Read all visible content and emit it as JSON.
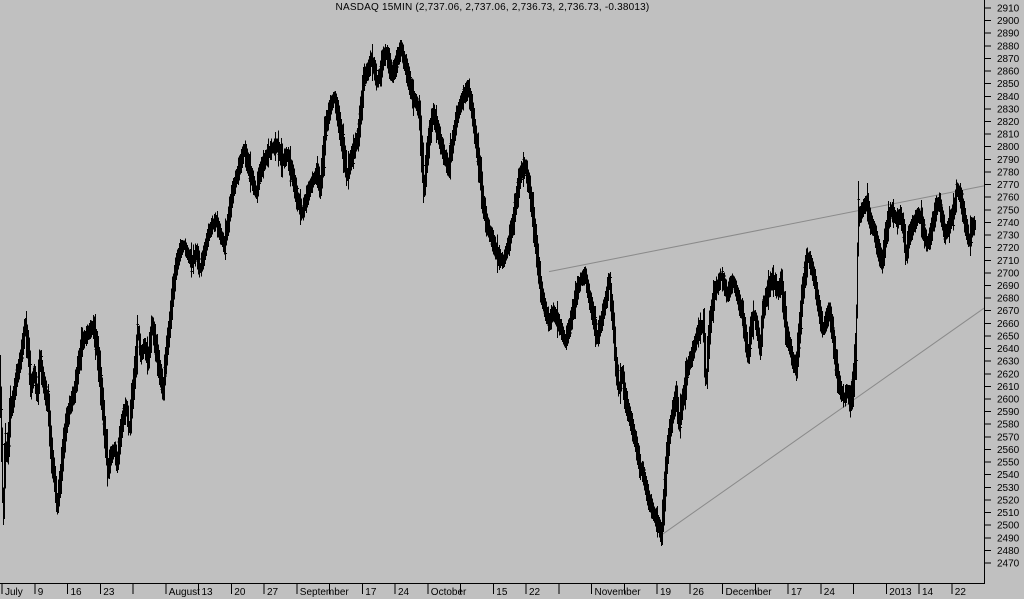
{
  "title": "NASDAQ 15MIN (2,737.06, 2,737.06, 2,736.73, 2,736.73, -0.38013)",
  "quote": {
    "symbol": "NASDAQ 15MIN",
    "open": "2,737.06",
    "high": "2,737.06",
    "low": "2,736.73",
    "close": "2,736.73",
    "change": "-0.38013"
  },
  "colors": {
    "background": "#c0c0c0",
    "bar": "#000000",
    "trendline": "#8a8a8a",
    "axis": "#000000",
    "text": "#000000"
  },
  "chart_data": {
    "type": "line",
    "style": "intraday-ohlc-bars",
    "title": "NASDAQ 15MIN (2,737.06, 2,737.06, 2,736.73, 2,736.73, -0.38013)",
    "grid": false,
    "legend": false,
    "y_axis": {
      "min": 2470,
      "max": 2910,
      "step": 10,
      "side": "right",
      "labels": [
        "2910",
        "2900",
        "2890",
        "2880",
        "2870",
        "2860",
        "2850",
        "2840",
        "2830",
        "2820",
        "2810",
        "2800",
        "2790",
        "2780",
        "2770",
        "2760",
        "2750",
        "2740",
        "2730",
        "2720",
        "2710",
        "2700",
        "2690",
        "2680",
        "2670",
        "2660",
        "2650",
        "2640",
        "2630",
        "2620",
        "2610",
        "2600",
        "2590",
        "2580",
        "2570",
        "2560",
        "2550",
        "2540",
        "2530",
        "2520",
        "2510",
        "2500",
        "2490",
        "2480",
        "2470"
      ]
    },
    "x_axis": {
      "tick_count": 30,
      "labels": [
        {
          "tick": 0,
          "text": "July"
        },
        {
          "tick": 1,
          "text": "9"
        },
        {
          "tick": 2,
          "text": "16"
        },
        {
          "tick": 3,
          "text": "23"
        },
        {
          "tick": 5,
          "text": "August"
        },
        {
          "tick": 6,
          "text": "13"
        },
        {
          "tick": 7,
          "text": "20"
        },
        {
          "tick": 8,
          "text": "27"
        },
        {
          "tick": 9,
          "text": "September"
        },
        {
          "tick": 11,
          "text": "17"
        },
        {
          "tick": 12,
          "text": "24"
        },
        {
          "tick": 13,
          "text": "October"
        },
        {
          "tick": 15,
          "text": "15"
        },
        {
          "tick": 16,
          "text": "22"
        },
        {
          "tick": 18,
          "text": "November"
        },
        {
          "tick": 20,
          "text": "19"
        },
        {
          "tick": 21,
          "text": "26"
        },
        {
          "tick": 22,
          "text": "December"
        },
        {
          "tick": 24,
          "text": "17"
        },
        {
          "tick": 25,
          "text": "24"
        },
        {
          "tick": 27,
          "text": "2013"
        },
        {
          "tick": 28,
          "text": "14"
        },
        {
          "tick": 29,
          "text": "22"
        }
      ]
    },
    "trendlines": [
      {
        "name": "upper-trendline",
        "from": [
          549,
          2701
        ],
        "to": [
          984,
          2769
        ]
      },
      {
        "name": "lower-trendline",
        "from": [
          661,
          2492
        ],
        "to": [
          984,
          2672
        ]
      }
    ],
    "price_path": [
      [
        0,
        2610
      ],
      [
        1,
        2580
      ],
      [
        3,
        2515
      ],
      [
        5,
        2555
      ],
      [
        8,
        2565
      ],
      [
        10,
        2590
      ],
      [
        13,
        2600
      ],
      [
        16,
        2615
      ],
      [
        20,
        2630
      ],
      [
        25,
        2657
      ],
      [
        28,
        2640
      ],
      [
        31,
        2610
      ],
      [
        34,
        2620
      ],
      [
        37,
        2605
      ],
      [
        40,
        2630
      ],
      [
        44,
        2610
      ],
      [
        48,
        2595
      ],
      [
        51,
        2560
      ],
      [
        54,
        2540
      ],
      [
        57,
        2517
      ],
      [
        60,
        2535
      ],
      [
        63,
        2560
      ],
      [
        66,
        2580
      ],
      [
        70,
        2595
      ],
      [
        74,
        2605
      ],
      [
        78,
        2625
      ],
      [
        82,
        2645
      ],
      [
        86,
        2650
      ],
      [
        90,
        2655
      ],
      [
        93,
        2657
      ],
      [
        96,
        2645
      ],
      [
        99,
        2625
      ],
      [
        102,
        2600
      ],
      [
        105,
        2570
      ],
      [
        108,
        2545
      ],
      [
        111,
        2555
      ],
      [
        114,
        2560
      ],
      [
        117,
        2550
      ],
      [
        120,
        2570
      ],
      [
        123,
        2585
      ],
      [
        126,
        2593
      ],
      [
        129,
        2578
      ],
      [
        132,
        2600
      ],
      [
        135,
        2625
      ],
      [
        138,
        2652
      ],
      [
        141,
        2635
      ],
      [
        144,
        2642
      ],
      [
        148,
        2632
      ],
      [
        152,
        2658
      ],
      [
        156,
        2640
      ],
      [
        160,
        2620
      ],
      [
        163,
        2608
      ],
      [
        166,
        2635
      ],
      [
        169,
        2655
      ],
      [
        172,
        2680
      ],
      [
        176,
        2705
      ],
      [
        180,
        2718
      ],
      [
        184,
        2722
      ],
      [
        188,
        2714
      ],
      [
        192,
        2709
      ],
      [
        196,
        2716
      ],
      [
        200,
        2704
      ],
      [
        204,
        2715
      ],
      [
        208,
        2730
      ],
      [
        212,
        2738
      ],
      [
        216,
        2741
      ],
      [
        220,
        2731
      ],
      [
        224,
        2722
      ],
      [
        228,
        2741
      ],
      [
        232,
        2762
      ],
      [
        236,
        2775
      ],
      [
        240,
        2786
      ],
      [
        244,
        2797
      ],
      [
        248,
        2786
      ],
      [
        252,
        2774
      ],
      [
        256,
        2764
      ],
      [
        260,
        2780
      ],
      [
        264,
        2788
      ],
      [
        268,
        2795
      ],
      [
        272,
        2799
      ],
      [
        277,
        2801
      ],
      [
        282,
        2789
      ],
      [
        287,
        2793
      ],
      [
        292,
        2779
      ],
      [
        297,
        2759
      ],
      [
        302,
        2748
      ],
      [
        307,
        2761
      ],
      [
        312,
        2772
      ],
      [
        317,
        2780
      ],
      [
        320,
        2768
      ],
      [
        323,
        2792
      ],
      [
        326,
        2817
      ],
      [
        330,
        2831
      ],
      [
        334,
        2839
      ],
      [
        338,
        2824
      ],
      [
        342,
        2804
      ],
      [
        347,
        2778
      ],
      [
        351,
        2791
      ],
      [
        355,
        2801
      ],
      [
        358,
        2809
      ],
      [
        361,
        2831
      ],
      [
        364,
        2855
      ],
      [
        368,
        2861
      ],
      [
        371,
        2869
      ],
      [
        374,
        2862
      ],
      [
        377,
        2852
      ],
      [
        380,
        2858
      ],
      [
        383,
        2870
      ],
      [
        386,
        2874
      ],
      [
        389,
        2866
      ],
      [
        392,
        2858
      ],
      [
        395,
        2863
      ],
      [
        398,
        2872
      ],
      [
        401,
        2878
      ],
      [
        404,
        2868
      ],
      [
        407,
        2859
      ],
      [
        410,
        2849
      ],
      [
        413,
        2839
      ],
      [
        416,
        2835
      ],
      [
        419,
        2827
      ],
      [
        422,
        2790
      ],
      [
        424,
        2769
      ],
      [
        427,
        2794
      ],
      [
        430,
        2812
      ],
      [
        433,
        2826
      ],
      [
        436,
        2818
      ],
      [
        440,
        2805
      ],
      [
        444,
        2793
      ],
      [
        448,
        2784
      ],
      [
        452,
        2801
      ],
      [
        456,
        2821
      ],
      [
        460,
        2833
      ],
      [
        464,
        2841
      ],
      [
        468,
        2846
      ],
      [
        472,
        2829
      ],
      [
        476,
        2804
      ],
      [
        480,
        2779
      ],
      [
        483,
        2756
      ],
      [
        486,
        2741
      ],
      [
        490,
        2731
      ],
      [
        494,
        2722
      ],
      [
        498,
        2713
      ],
      [
        503,
        2709
      ],
      [
        508,
        2722
      ],
      [
        513,
        2741
      ],
      [
        517,
        2763
      ],
      [
        521,
        2780
      ],
      [
        525,
        2784
      ],
      [
        529,
        2769
      ],
      [
        533,
        2744
      ],
      [
        537,
        2714
      ],
      [
        541,
        2686
      ],
      [
        545,
        2671
      ],
      [
        549,
        2661
      ],
      [
        553,
        2669
      ],
      [
        557,
        2663
      ],
      [
        561,
        2655
      ],
      [
        565,
        2646
      ],
      [
        569,
        2656
      ],
      [
        573,
        2671
      ],
      [
        577,
        2686
      ],
      [
        581,
        2695
      ],
      [
        585,
        2698
      ],
      [
        589,
        2681
      ],
      [
        593,
        2666
      ],
      [
        597,
        2649
      ],
      [
        601,
        2661
      ],
      [
        605,
        2676
      ],
      [
        609,
        2693
      ],
      [
        613,
        2661
      ],
      [
        616,
        2626
      ],
      [
        619,
        2609
      ],
      [
        622,
        2619
      ],
      [
        625,
        2601
      ],
      [
        628,
        2591
      ],
      [
        631,
        2581
      ],
      [
        634,
        2571
      ],
      [
        637,
        2559
      ],
      [
        640,
        2546
      ],
      [
        643,
        2541
      ],
      [
        646,
        2529
      ],
      [
        649,
        2519
      ],
      [
        652,
        2513
      ],
      [
        655,
        2506
      ],
      [
        658,
        2501
      ],
      [
        661,
        2493
      ],
      [
        664,
        2521
      ],
      [
        667,
        2556
      ],
      [
        670,
        2576
      ],
      [
        673,
        2591
      ],
      [
        676,
        2602
      ],
      [
        679,
        2582
      ],
      [
        682,
        2596
      ],
      [
        685,
        2611
      ],
      [
        688,
        2626
      ],
      [
        691,
        2633
      ],
      [
        694,
        2641
      ],
      [
        697,
        2651
      ],
      [
        700,
        2656
      ],
      [
        703,
        2658
      ],
      [
        706,
        2618
      ],
      [
        709,
        2651
      ],
      [
        712,
        2673
      ],
      [
        715,
        2686
      ],
      [
        718,
        2691
      ],
      [
        721,
        2697
      ],
      [
        724,
        2691
      ],
      [
        727,
        2683
      ],
      [
        730,
        2689
      ],
      [
        733,
        2693
      ],
      [
        736,
        2686
      ],
      [
        739,
        2676
      ],
      [
        742,
        2669
      ],
      [
        745,
        2651
      ],
      [
        748,
        2636
      ],
      [
        751,
        2656
      ],
      [
        754,
        2666
      ],
      [
        757,
        2656
      ],
      [
        760,
        2641
      ],
      [
        763,
        2669
      ],
      [
        766,
        2681
      ],
      [
        769,
        2689
      ],
      [
        772,
        2695
      ],
      [
        775,
        2691
      ],
      [
        778,
        2686
      ],
      [
        781,
        2693
      ],
      [
        784,
        2671
      ],
      [
        787,
        2651
      ],
      [
        790,
        2641
      ],
      [
        793,
        2629
      ],
      [
        796,
        2626
      ],
      [
        799,
        2651
      ],
      [
        802,
        2681
      ],
      [
        805,
        2701
      ],
      [
        808,
        2712
      ],
      [
        811,
        2706
      ],
      [
        814,
        2696
      ],
      [
        817,
        2681
      ],
      [
        820,
        2666
      ],
      [
        823,
        2656
      ],
      [
        826,
        2663
      ],
      [
        829,
        2669
      ],
      [
        832,
        2656
      ],
      [
        835,
        2634
      ],
      [
        838,
        2616
      ],
      [
        841,
        2606
      ],
      [
        844,
        2601
      ],
      [
        847,
        2606
      ],
      [
        850,
        2598
      ],
      [
        853,
        2611
      ],
      [
        856,
        2645
      ],
      [
        858,
        2743
      ],
      [
        861,
        2748
      ],
      [
        864,
        2753
      ],
      [
        867,
        2756
      ],
      [
        870,
        2741
      ],
      [
        873,
        2736
      ],
      [
        876,
        2726
      ],
      [
        879,
        2716
      ],
      [
        882,
        2709
      ],
      [
        885,
        2726
      ],
      [
        888,
        2741
      ],
      [
        891,
        2749
      ],
      [
        894,
        2746
      ],
      [
        897,
        2741
      ],
      [
        900,
        2746
      ],
      [
        903,
        2736
      ],
      [
        906,
        2716
      ],
      [
        909,
        2729
      ],
      [
        912,
        2736
      ],
      [
        915,
        2741
      ],
      [
        918,
        2746
      ],
      [
        921,
        2743
      ],
      [
        924,
        2731
      ],
      [
        927,
        2723
      ],
      [
        930,
        2729
      ],
      [
        933,
        2741
      ],
      [
        936,
        2751
      ],
      [
        939,
        2756
      ],
      [
        942,
        2743
      ],
      [
        945,
        2731
      ],
      [
        948,
        2736
      ],
      [
        951,
        2743
      ],
      [
        954,
        2751
      ],
      [
        957,
        2766
      ],
      [
        960,
        2761
      ],
      [
        963,
        2749
      ],
      [
        966,
        2736
      ],
      [
        969,
        2726
      ],
      [
        972,
        2736
      ],
      [
        975,
        2738
      ]
    ]
  }
}
